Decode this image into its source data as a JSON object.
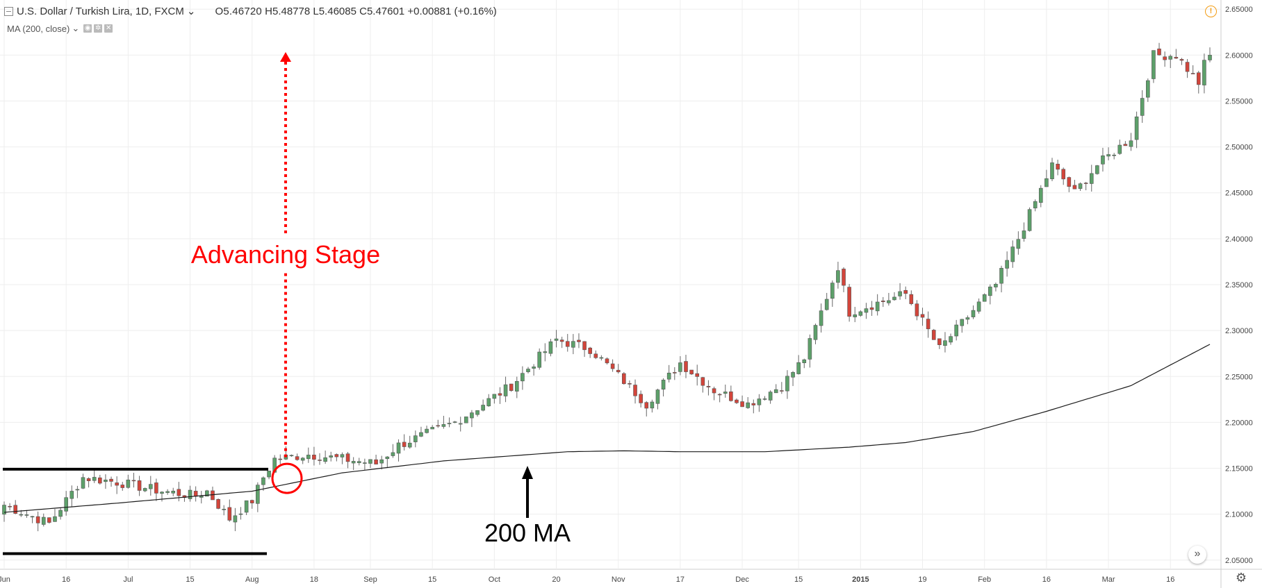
{
  "header": {
    "symbol_title": "U.S. Dollar / Turkish Lira, 1D, FXCM",
    "chevron": "⌄",
    "open": "O5.46720",
    "high": "H5.48778",
    "low": "L5.46085",
    "close": "C5.47601",
    "change": "+0.00881 (+0.16%)",
    "warning_glyph": "!"
  },
  "indicator": {
    "label": "MA (200, close)",
    "chevron": "⌄"
  },
  "annotations": {
    "stage_label": "Advancing Stage",
    "ma_label": "200 MA"
  },
  "colors": {
    "up": "#5da06a",
    "down": "#d2453b",
    "wick": "#666666",
    "ma": "#1a1a1a",
    "annotation": "#ff0000",
    "grid": "#eeeeee"
  },
  "chart_data": {
    "type": "candlestick",
    "title": "",
    "xlabel": "",
    "ylabel": "",
    "ylim": [
      2.04,
      2.66
    ],
    "y_ticks": [
      "2.05000",
      "2.10000",
      "2.15000",
      "2.20000",
      "2.25000",
      "2.30000",
      "2.35000",
      "2.40000",
      "2.45000",
      "2.50000",
      "2.55000",
      "2.60000",
      "2.65000"
    ],
    "x_ticks": [
      "Jun",
      "16",
      "Jul",
      "15",
      "Aug",
      "18",
      "Sep",
      "15",
      "Oct",
      "20",
      "Nov",
      "17",
      "Dec",
      "15",
      "2015",
      "19",
      "Feb",
      "16",
      "Mar",
      "16"
    ],
    "trading_days": 215,
    "grid": true,
    "close_path": [
      [
        0,
        2.11
      ],
      [
        8,
        2.09
      ],
      [
        14,
        2.14
      ],
      [
        20,
        2.135
      ],
      [
        28,
        2.125
      ],
      [
        34,
        2.12
      ],
      [
        36,
        2.125
      ],
      [
        38,
        2.11
      ],
      [
        40,
        2.095
      ],
      [
        44,
        2.115
      ],
      [
        46,
        2.14
      ],
      [
        48,
        2.16
      ],
      [
        54,
        2.165
      ],
      [
        60,
        2.16
      ],
      [
        66,
        2.155
      ],
      [
        70,
        2.175
      ],
      [
        80,
        2.2
      ],
      [
        90,
        2.24
      ],
      [
        98,
        2.29
      ],
      [
        104,
        2.28
      ],
      [
        110,
        2.245
      ],
      [
        114,
        2.22
      ],
      [
        120,
        2.265
      ],
      [
        126,
        2.235
      ],
      [
        132,
        2.22
      ],
      [
        138,
        2.24
      ],
      [
        142,
        2.27
      ],
      [
        148,
        2.37
      ],
      [
        150,
        2.32
      ],
      [
        160,
        2.34
      ],
      [
        166,
        2.28
      ],
      [
        176,
        2.35
      ],
      [
        180,
        2.4
      ],
      [
        186,
        2.48
      ],
      [
        190,
        2.45
      ],
      [
        194,
        2.48
      ],
      [
        200,
        2.51
      ],
      [
        204,
        2.6
      ],
      [
        208,
        2.6
      ],
      [
        212,
        2.57
      ],
      [
        214,
        2.61
      ]
    ],
    "ma_path": [
      [
        0,
        2.102
      ],
      [
        20,
        2.112
      ],
      [
        44,
        2.125
      ],
      [
        60,
        2.145
      ],
      [
        78,
        2.158
      ],
      [
        100,
        2.168
      ],
      [
        110,
        2.169
      ],
      [
        120,
        2.168
      ],
      [
        135,
        2.168
      ],
      [
        150,
        2.173
      ],
      [
        160,
        2.178
      ],
      [
        172,
        2.19
      ],
      [
        185,
        2.212
      ],
      [
        200,
        2.24
      ],
      [
        214,
        2.285
      ]
    ],
    "volatility": 0.011,
    "seed": 7,
    "last_close": 2.6,
    "series": [
      {
        "name": "MA (200, close)"
      }
    ]
  }
}
